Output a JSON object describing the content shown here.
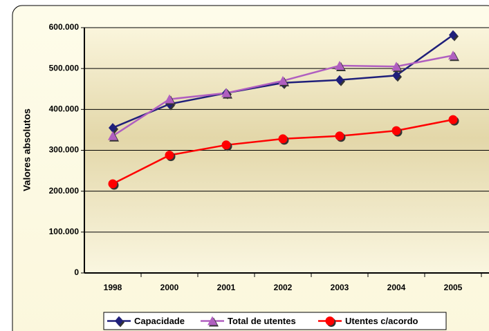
{
  "chart_data": {
    "type": "line",
    "y_axis_label": "Valores absolutos",
    "categories": [
      "1998",
      "2000",
      "2001",
      "2002",
      "2003",
      "2004",
      "2005"
    ],
    "series": [
      {
        "name": "Capacidade",
        "color": "#1f1f7a",
        "marker": "diamond",
        "values": [
          355000,
          413000,
          440000,
          465000,
          472000,
          483000,
          582000
        ]
      },
      {
        "name": "Total de utentes",
        "color": "#b05fc0",
        "marker": "triangle",
        "values": [
          335000,
          425000,
          440000,
          470000,
          507000,
          505000,
          532000
        ]
      },
      {
        "name": "Utentes c/acordo",
        "color": "#ff0000",
        "marker": "circle",
        "values": [
          218000,
          288000,
          313000,
          328000,
          335000,
          348000,
          375000
        ]
      }
    ],
    "ylim": [
      0,
      600000
    ],
    "yticks": [
      0,
      {
        "value": 100000,
        "label": "100.000"
      },
      {
        "value": 200000,
        "label": "200.000"
      },
      {
        "value": 300000,
        "label": "300.000"
      },
      {
        "value": 400000,
        "label": "400.000"
      },
      {
        "value": 500000,
        "label": "500.000"
      },
      {
        "value": 600000,
        "label": "600.000"
      }
    ],
    "grid": true,
    "legend": "bottom"
  }
}
